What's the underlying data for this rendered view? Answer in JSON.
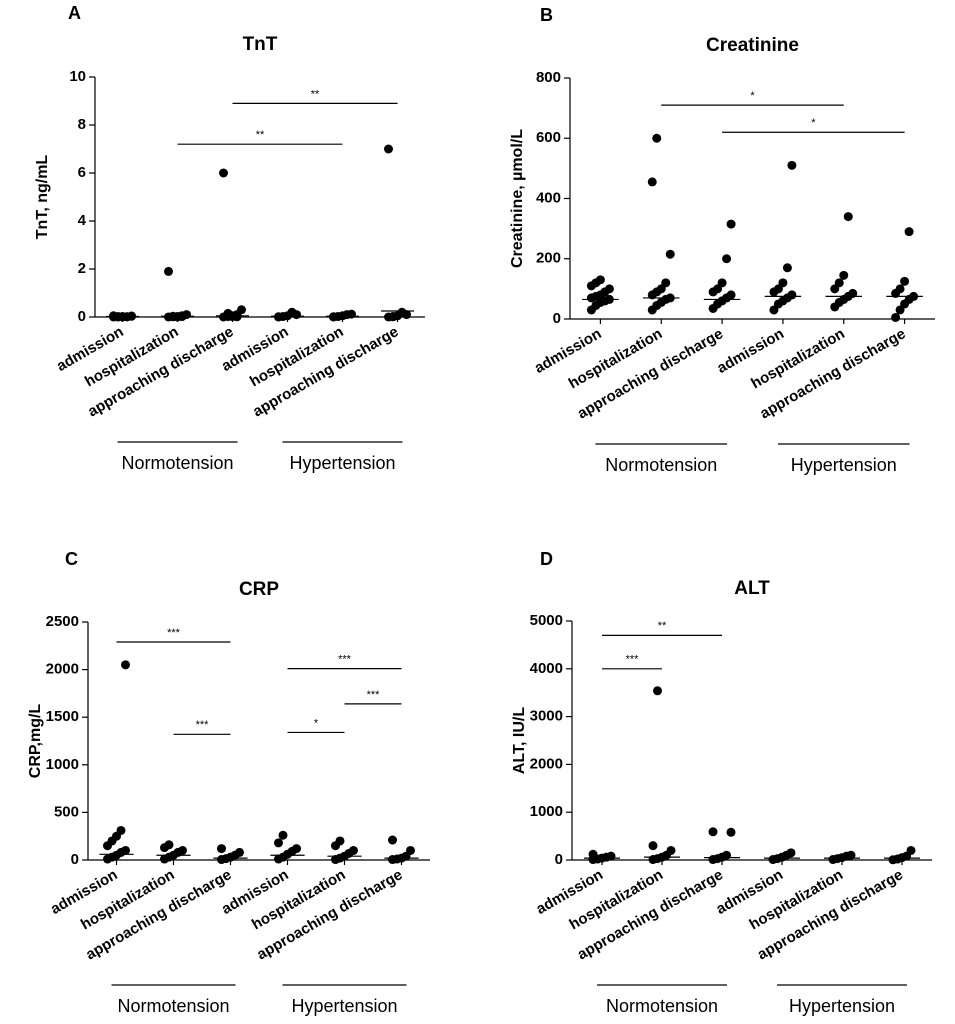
{
  "chart_data": [
    {
      "type": "strip",
      "panel": "A",
      "title": "TnT",
      "y_label": "TnT, ng/mL",
      "categories": [
        "admission",
        "hospitalization",
        "approaching discharge",
        "admission",
        "hospitalization",
        "approaching discharge"
      ],
      "groups": [
        "Normotension",
        "Hypertension"
      ],
      "points": [
        [
          0,
          0,
          0.02,
          0.01,
          0.03,
          0.05,
          0.02,
          0,
          0.01,
          0.04
        ],
        [
          0,
          0.01,
          0.02,
          0.05,
          0.1,
          1.9,
          0.03,
          0,
          0.02
        ],
        [
          0,
          0.02,
          0.05,
          0.1,
          0.3,
          6.0,
          0.15,
          0.02,
          0.01
        ],
        [
          0,
          0.02,
          0.05,
          0.2,
          0.1,
          0.01
        ],
        [
          0,
          0.02,
          0.05,
          0.1,
          0.12,
          0.01
        ],
        [
          0,
          0.02,
          0.05,
          0.2,
          0.1,
          7.0,
          0.01
        ]
      ],
      "medians": [
        0.02,
        0.03,
        0.05,
        0.03,
        0.03,
        0.25
      ],
      "significance": [
        {
          "label": "**",
          "from": 1,
          "to": 4,
          "y": 7.2
        },
        {
          "label": "**",
          "from": 2,
          "to": 5,
          "y": 8.9
        }
      ],
      "ylim": [
        0,
        10
      ],
      "yticks": [
        0,
        2,
        4,
        6,
        8,
        10
      ],
      "color": "#000000"
    },
    {
      "type": "strip",
      "panel": "B",
      "title": "Creatinine",
      "y_label": "Creatinine, µmol/L",
      "categories": [
        "admission",
        "hospitalization",
        "approaching discharge",
        "admission",
        "hospitalization",
        "approaching discharge"
      ],
      "groups": [
        "Normotension",
        "Hypertension"
      ],
      "points": [
        [
          30,
          45,
          55,
          60,
          65,
          70,
          75,
          80,
          90,
          100,
          110,
          120,
          130
        ],
        [
          30,
          45,
          55,
          65,
          70,
          80,
          90,
          100,
          120,
          215,
          455,
          600
        ],
        [
          35,
          50,
          60,
          70,
          80,
          90,
          100,
          120,
          200,
          315
        ],
        [
          30,
          50,
          60,
          70,
          80,
          90,
          100,
          120,
          170,
          510
        ],
        [
          40,
          55,
          65,
          75,
          85,
          100,
          120,
          145,
          340
        ],
        [
          5,
          30,
          50,
          65,
          75,
          85,
          100,
          125,
          290
        ]
      ],
      "medians": [
        65,
        70,
        65,
        75,
        75,
        75
      ],
      "significance": [
        {
          "label": "*",
          "from": 1,
          "to": 4,
          "y": 710
        },
        {
          "label": "*",
          "from": 2,
          "to": 5,
          "y": 620
        }
      ],
      "ylim": [
        0,
        800
      ],
      "yticks": [
        0,
        200,
        400,
        600,
        800
      ],
      "color": "#000000"
    },
    {
      "type": "strip",
      "panel": "C",
      "title": "CRP",
      "y_label": "CRP,mg/L",
      "categories": [
        "admission",
        "hospitalization",
        "approaching discharge",
        "admission",
        "hospitalization",
        "approaching discharge"
      ],
      "groups": [
        "Normotension",
        "Hypertension"
      ],
      "points": [
        [
          10,
          30,
          50,
          80,
          100,
          150,
          200,
          250,
          310,
          2050
        ],
        [
          10,
          30,
          50,
          80,
          100,
          130,
          160
        ],
        [
          5,
          15,
          30,
          50,
          80,
          120
        ],
        [
          10,
          30,
          60,
          90,
          120,
          180,
          260
        ],
        [
          5,
          20,
          40,
          70,
          100,
          150,
          200
        ],
        [
          5,
          10,
          20,
          40,
          100,
          210
        ]
      ],
      "medians": [
        60,
        50,
        20,
        50,
        40,
        20
      ],
      "significance": [
        {
          "label": "***",
          "from": 0,
          "to": 2,
          "y": 2290
        },
        {
          "label": "***",
          "from": 1,
          "to": 2,
          "y": 1320
        },
        {
          "label": "*",
          "from": 3,
          "to": 4,
          "y": 1340
        },
        {
          "label": "***",
          "from": 3,
          "to": 5,
          "y": 2010
        },
        {
          "label": "***",
          "from": 4,
          "to": 5,
          "y": 1640
        }
      ],
      "ylim": [
        0,
        2500
      ],
      "yticks": [
        0,
        500,
        1000,
        1500,
        2000,
        2500
      ],
      "color": "#000000"
    },
    {
      "type": "strip",
      "panel": "D",
      "title": "ALT",
      "y_label": "ALT, IU/L",
      "categories": [
        "admission",
        "hospitalization",
        "approaching discharge",
        "admission",
        "hospitalization",
        "approaching discharge"
      ],
      "groups": [
        "Normotension",
        "Hypertension"
      ],
      "points": [
        [
          10,
          20,
          40,
          60,
          80,
          120
        ],
        [
          10,
          30,
          60,
          100,
          200,
          300,
          3540
        ],
        [
          10,
          30,
          60,
          100,
          580,
          590
        ],
        [
          10,
          30,
          60,
          100,
          150
        ],
        [
          10,
          30,
          50,
          80,
          100
        ],
        [
          5,
          20,
          50,
          80,
          200
        ]
      ],
      "medians": [
        40,
        60,
        50,
        40,
        40,
        40
      ],
      "significance": [
        {
          "label": "***",
          "from": 0,
          "to": 1,
          "y": 4000
        },
        {
          "label": "**",
          "from": 0,
          "to": 2,
          "y": 4700
        }
      ],
      "ylim": [
        0,
        5000
      ],
      "yticks": [
        0,
        1000,
        2000,
        3000,
        4000,
        5000
      ],
      "color": "#000000"
    }
  ]
}
